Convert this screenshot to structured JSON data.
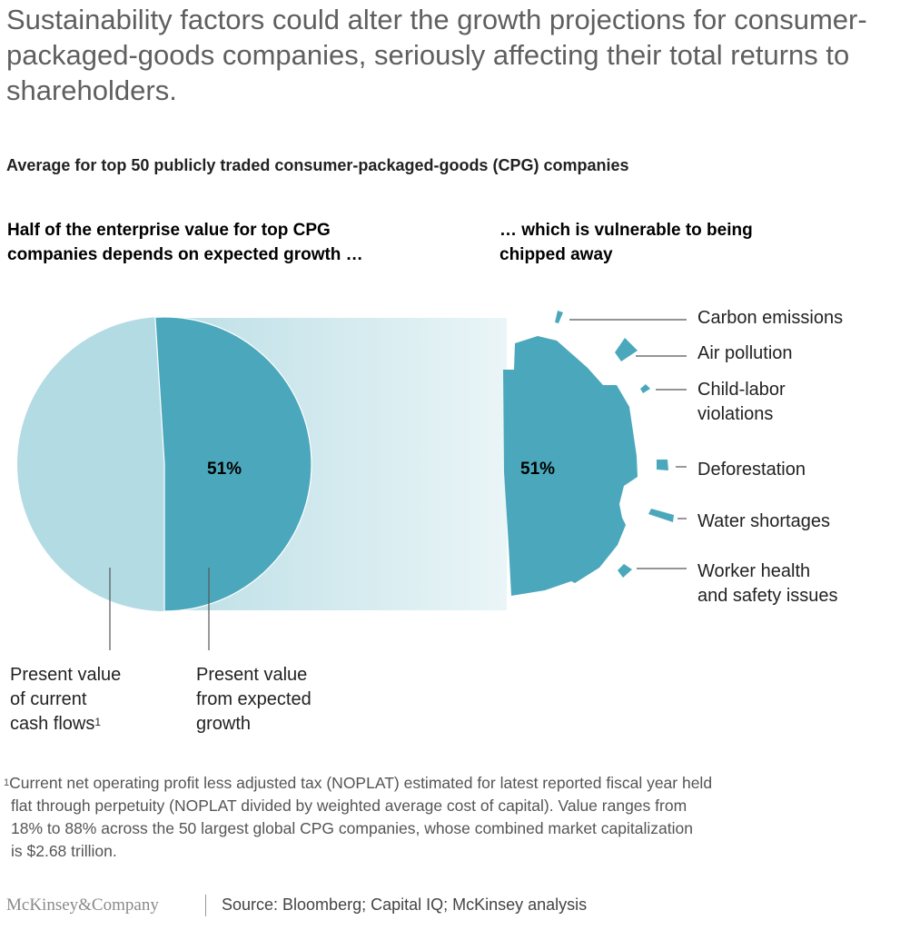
{
  "header": {
    "title": "Sustainability factors could alter the growth projections for consumer-packaged-goods companies, seriously affecting their total returns to shareholders.",
    "subtitle": "Average for top 50 publicly traded consumer-packaged-goods (CPG) companies"
  },
  "panels": {
    "left_heading": "Half of the enterprise value for top CPG companies depends on expected growth …",
    "right_heading": "… which is vulnerable to being chipped away"
  },
  "chart_data": [
    {
      "type": "pie",
      "title": "Half of the enterprise value for top CPG companies depends on expected growth …",
      "slices": [
        {
          "label": "Present value of current cash flows",
          "footnote_ref": "1",
          "value": 49,
          "color": "#b3dbe3"
        },
        {
          "label": "Present value from expected growth",
          "value": 51,
          "color": "#4ba8bc",
          "data_label": "51%"
        }
      ]
    },
    {
      "type": "pie",
      "title": "… which is vulnerable to being chipped away",
      "slices": [
        {
          "label": "Present value from expected growth",
          "value": 51,
          "color": "#4ba8bc",
          "data_label": "51%"
        }
      ],
      "chipped_factors": [
        "Carbon emissions",
        "Air pollution",
        "Child-labor violations",
        "Deforestation",
        "Water shortages",
        "Worker health and safety issues"
      ]
    }
  ],
  "labels": {
    "pct_left": "51%",
    "pct_right": "51%",
    "cash_flows": [
      "Present value",
      "of current",
      "cash flows"
    ],
    "cash_flows_sup": "1",
    "growth": [
      "Present value",
      "from expected",
      "growth"
    ],
    "factors": [
      [
        "Carbon emissions"
      ],
      [
        "Air pollution"
      ],
      [
        "Child-labor",
        "violations"
      ],
      [
        "Deforestation"
      ],
      [
        "Water shortages"
      ],
      [
        "Worker health",
        "and safety issues"
      ]
    ]
  },
  "footnote": {
    "marker": "1",
    "lines": [
      "Current net operating profit less adjusted tax (NOPLAT) estimated for latest reported fiscal year held",
      "flat through perpetuity (NOPLAT divided by weighted average cost of capital). Value ranges from",
      "18% to 88% across the 50 largest global CPG companies, whose combined market capitalization",
      "is $2.68 trillion."
    ]
  },
  "footer": {
    "brand": "McKinsey&Company",
    "source": "Source: Bloomberg; Capital IQ; McKinsey analysis"
  },
  "colors": {
    "dark_teal": "#4ba8bc",
    "light_teal": "#b3dbe3",
    "band_start": "#bcdfe6",
    "band_end": "#eaf5f7"
  }
}
